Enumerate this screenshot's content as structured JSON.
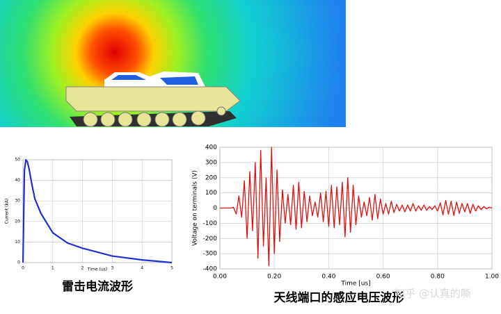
{
  "chart_data": [
    {
      "type": "line",
      "xlabel": "Time (us)",
      "ylabel": "Current (kA)",
      "x": [
        0,
        0.05,
        0.1,
        0.15,
        0.2,
        0.3,
        0.4,
        0.6,
        1,
        1.5,
        2,
        3,
        4,
        5
      ],
      "series": [
        {
          "color": "#1f2fd0",
          "values": [
            0,
            45,
            50,
            49,
            46,
            38,
            31,
            24,
            14.5,
            9.5,
            7,
            3.2,
            1.3,
            0
          ]
        }
      ],
      "xlim": [
        0,
        5
      ],
      "xticks": [
        0,
        1,
        2,
        3,
        4,
        5
      ],
      "ylim": [
        0,
        50
      ],
      "yticks": [
        0,
        10,
        20,
        30,
        40,
        50
      ],
      "grid": true
    },
    {
      "type": "line",
      "xlabel": "Time [us]",
      "ylabel": "Voltage on terminals (V)",
      "x": [
        0,
        0.01,
        0.02,
        0.03,
        0.04,
        0.05,
        0.06,
        0.07,
        0.08,
        0.09,
        0.1,
        0.11,
        0.12,
        0.13,
        0.14,
        0.15,
        0.16,
        0.17,
        0.18,
        0.19,
        0.2,
        0.21,
        0.22,
        0.23,
        0.24,
        0.25,
        0.26,
        0.27,
        0.28,
        0.29,
        0.3,
        0.31,
        0.32,
        0.33,
        0.34,
        0.35,
        0.36,
        0.37,
        0.38,
        0.39,
        0.4,
        0.41,
        0.42,
        0.43,
        0.44,
        0.45,
        0.46,
        0.47,
        0.48,
        0.49,
        0.5,
        0.51,
        0.52,
        0.53,
        0.54,
        0.55,
        0.56,
        0.57,
        0.58,
        0.59,
        0.6,
        0.61,
        0.62,
        0.63,
        0.64,
        0.65,
        0.66,
        0.67,
        0.68,
        0.69,
        0.7,
        0.71,
        0.72,
        0.73,
        0.74,
        0.75,
        0.76,
        0.77,
        0.78,
        0.79,
        0.8,
        0.81,
        0.82,
        0.83,
        0.84,
        0.85,
        0.86,
        0.87,
        0.88,
        0.89,
        0.9,
        0.91,
        0.92,
        0.93,
        0.94,
        0.95,
        0.96,
        0.97,
        0.98,
        0.99,
        1
      ],
      "series": [
        {
          "color": "#e01010",
          "values": [
            0,
            0,
            0,
            0,
            0,
            5,
            -40,
            80,
            -60,
            180,
            -200,
            240,
            -150,
            300,
            -330,
            380,
            -250,
            200,
            -380,
            400,
            -300,
            250,
            -220,
            120,
            -100,
            90,
            -110,
            150,
            -140,
            170,
            -130,
            110,
            -90,
            80,
            -50,
            40,
            -60,
            100,
            -90,
            110,
            -120,
            150,
            -130,
            140,
            -110,
            170,
            -190,
            200,
            -160,
            150,
            -110,
            80,
            -60,
            40,
            -50,
            70,
            -80,
            90,
            -70,
            60,
            -40,
            30,
            -40,
            45,
            -30,
            25,
            -20,
            20,
            -25,
            20,
            -20,
            30,
            -20,
            15,
            -15,
            20,
            -15,
            10,
            -10,
            15,
            -20,
            35,
            -45,
            50,
            -40,
            45,
            -50,
            40,
            -35,
            30,
            -25,
            30,
            -35,
            25,
            -20,
            15,
            -10,
            10,
            -5,
            5,
            0
          ]
        }
      ],
      "xlim": [
        0,
        1
      ],
      "xticks": [
        {
          "value": 0,
          "label": "0.00"
        },
        {
          "value": 0.2,
          "label": "0.20"
        },
        {
          "value": 0.4,
          "label": "0.40"
        },
        {
          "value": 0.6,
          "label": "0.60"
        },
        {
          "value": 0.8,
          "label": "0.80"
        },
        {
          "value": 1,
          "label": "1.00"
        }
      ],
      "ylim": [
        -400,
        400
      ],
      "yticks": [
        -400,
        -300,
        -200,
        -100,
        0,
        100,
        200,
        300,
        400
      ],
      "grid": true
    }
  ],
  "captions": [
    "雷击电流波形",
    "天线端口的感应电压波形"
  ],
  "watermark": "知乎 @认真的嘶"
}
